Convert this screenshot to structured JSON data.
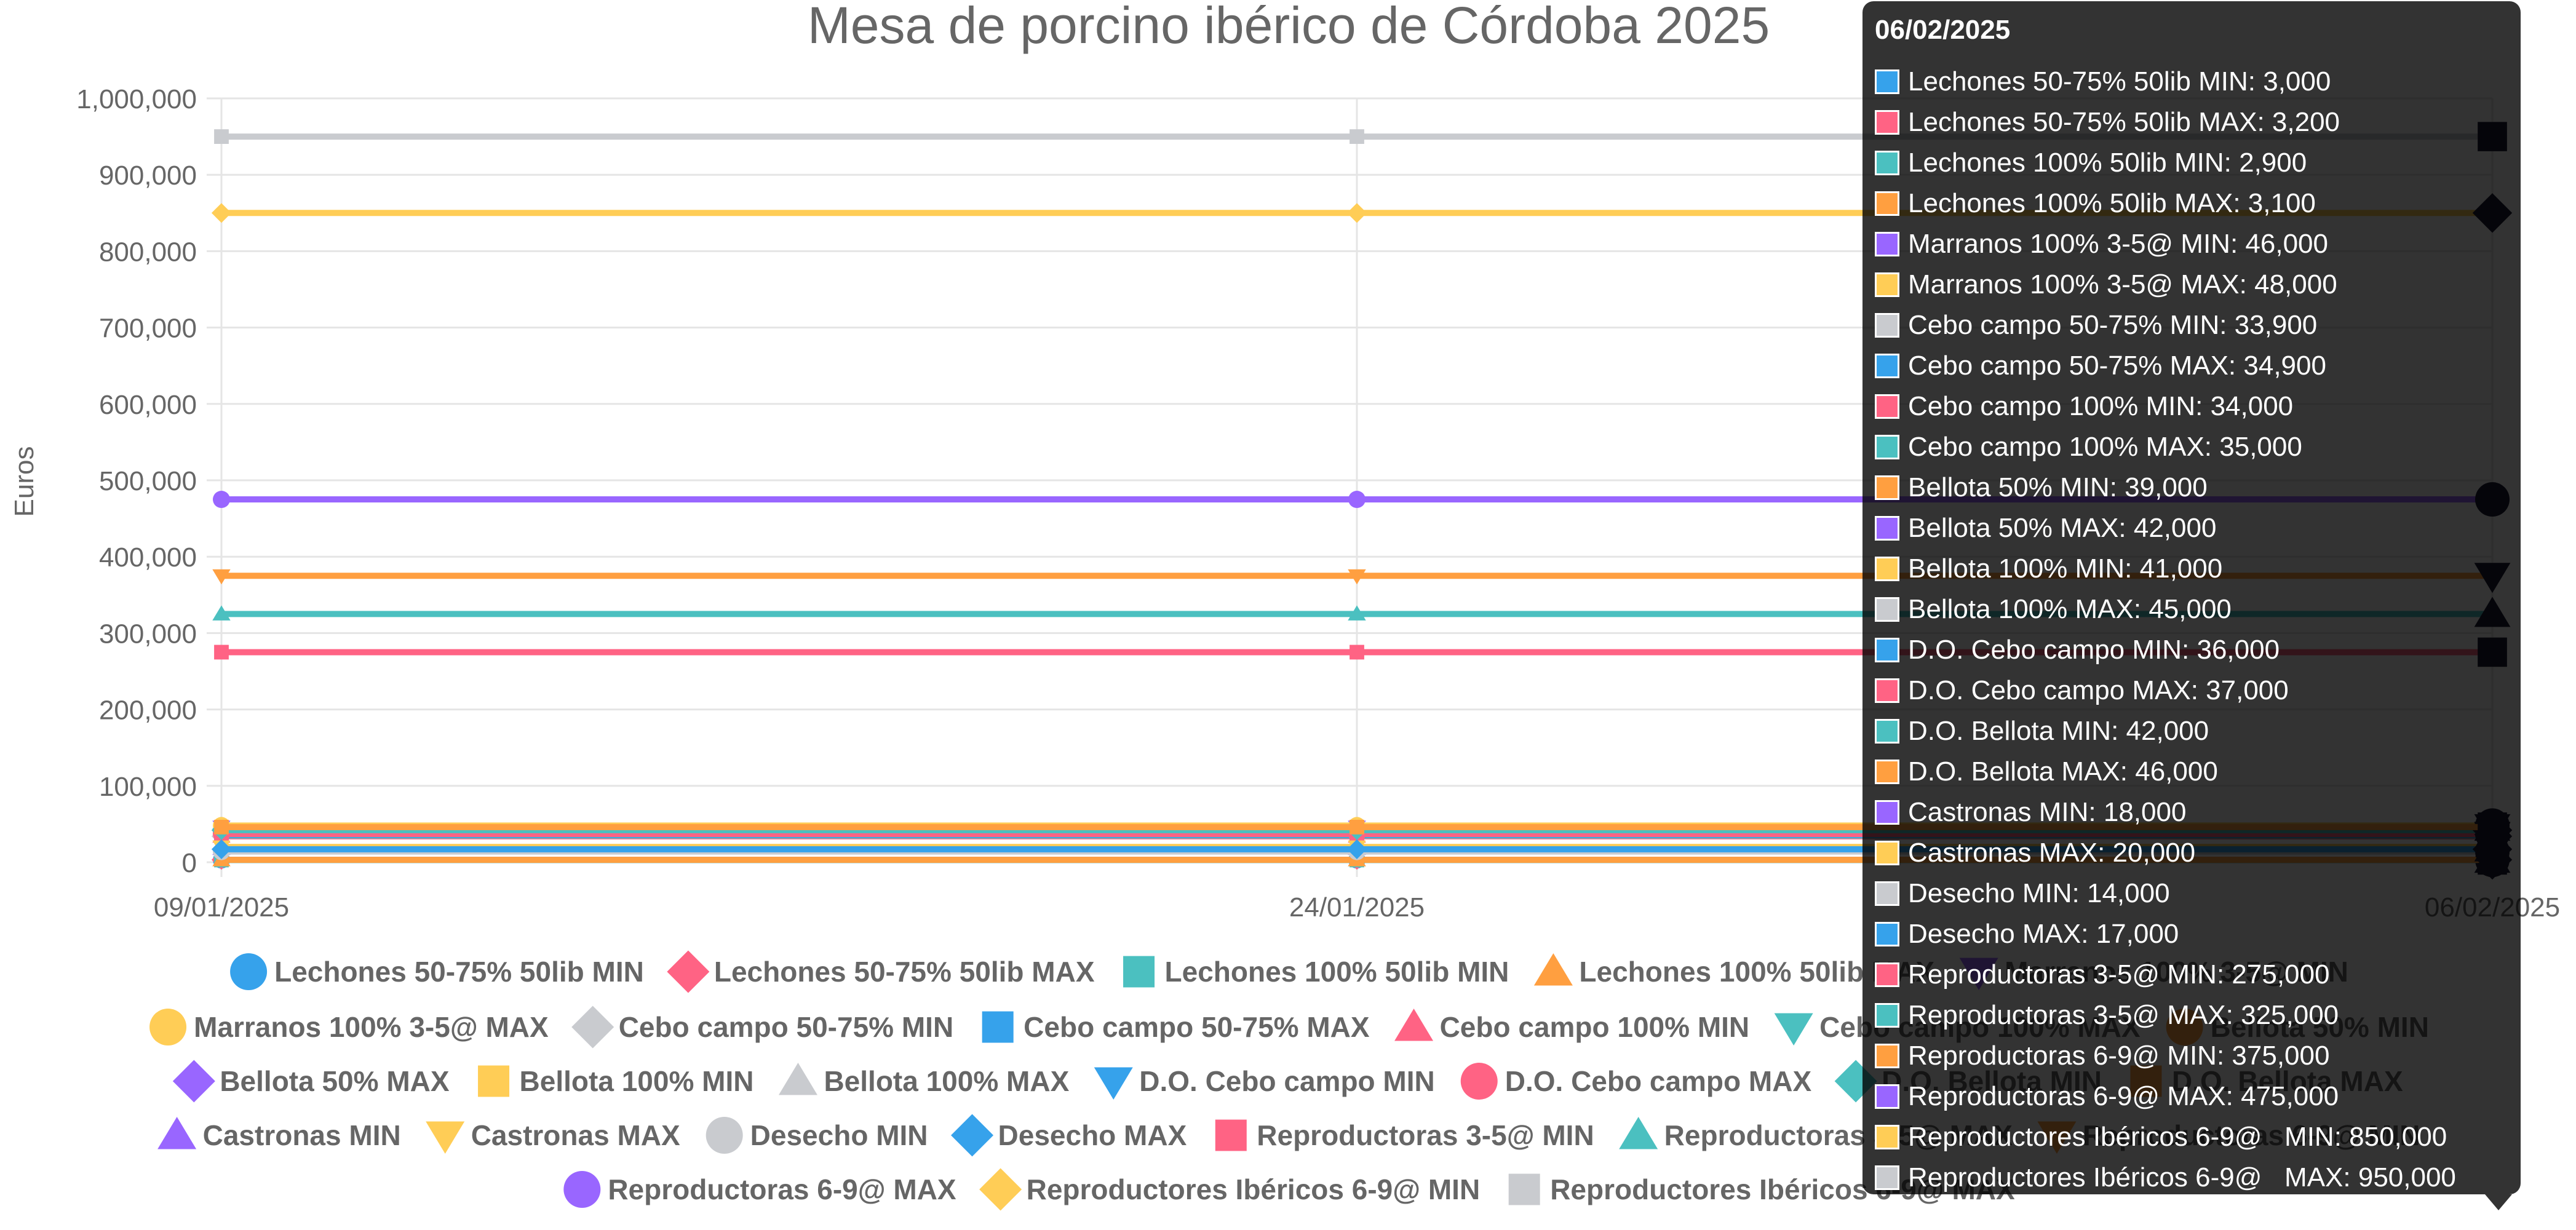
{
  "chart_data": {
    "type": "line",
    "title": "Mesa de porcino ibérico de Córdoba 2025",
    "ylabel": "Euros",
    "xlabel": "",
    "x": [
      "09/01/2025",
      "24/01/2025",
      "06/02/2025"
    ],
    "ylim": [
      0,
      1000000
    ],
    "yticks": [
      "0",
      "100,000",
      "200,000",
      "300,000",
      "400,000",
      "500,000",
      "600,000",
      "700,000",
      "800,000",
      "900,000",
      "1,000,000"
    ],
    "grid": true,
    "legend_position": "bottom",
    "series": [
      {
        "name": "Lechones 50-75% 50lib MIN",
        "values": [
          3000,
          3000,
          3000
        ],
        "color": "#36a2eb",
        "marker": "circle"
      },
      {
        "name": "Lechones 50-75% 50lib MAX",
        "values": [
          3200,
          3200,
          3200
        ],
        "color": "#ff6384",
        "marker": "rectRot"
      },
      {
        "name": "Lechones 100% 50lib MIN",
        "values": [
          2900,
          2900,
          2900
        ],
        "color": "#4bc0c0",
        "marker": "rect"
      },
      {
        "name": "Lechones 100% 50lib MAX",
        "values": [
          3100,
          3100,
          3100
        ],
        "color": "#ff9f40",
        "marker": "triangle"
      },
      {
        "name": "Marranos 100% 3-5@ MIN",
        "values": [
          46000,
          46000,
          46000
        ],
        "color": "#9966ff",
        "marker": "triangleDown"
      },
      {
        "name": "Marranos 100% 3-5@ MAX",
        "values": [
          48000,
          48000,
          48000
        ],
        "color": "#ffcd56",
        "marker": "circle"
      },
      {
        "name": "Cebo campo 50-75% MIN",
        "values": [
          33900,
          33900,
          33900
        ],
        "color": "#c9cbcf",
        "marker": "rectRot"
      },
      {
        "name": "Cebo campo 50-75% MAX",
        "values": [
          34900,
          34900,
          34900
        ],
        "color": "#36a2eb",
        "marker": "rect"
      },
      {
        "name": "Cebo campo 100% MIN",
        "values": [
          34000,
          34000,
          34000
        ],
        "color": "#ff6384",
        "marker": "triangle"
      },
      {
        "name": "Cebo campo 100% MAX",
        "values": [
          35000,
          35000,
          35000
        ],
        "color": "#4bc0c0",
        "marker": "triangleDown"
      },
      {
        "name": "Bellota 50% MIN",
        "values": [
          39000,
          39000,
          39000
        ],
        "color": "#ff9f40",
        "marker": "circle"
      },
      {
        "name": "Bellota 50% MAX",
        "values": [
          42000,
          42000,
          42000
        ],
        "color": "#9966ff",
        "marker": "rectRot"
      },
      {
        "name": "Bellota 100% MIN",
        "values": [
          41000,
          41000,
          41000
        ],
        "color": "#ffcd56",
        "marker": "rect"
      },
      {
        "name": "Bellota 100% MAX",
        "values": [
          45000,
          45000,
          45000
        ],
        "color": "#c9cbcf",
        "marker": "triangle"
      },
      {
        "name": "D.O. Cebo campo MIN",
        "values": [
          36000,
          36000,
          36000
        ],
        "color": "#36a2eb",
        "marker": "triangleDown"
      },
      {
        "name": "D.O. Cebo campo MAX",
        "values": [
          37000,
          37000,
          37000
        ],
        "color": "#ff6384",
        "marker": "circle"
      },
      {
        "name": "D.O. Bellota MIN",
        "values": [
          42000,
          42000,
          42000
        ],
        "color": "#4bc0c0",
        "marker": "rectRot"
      },
      {
        "name": "D.O. Bellota MAX",
        "values": [
          46000,
          46000,
          46000
        ],
        "color": "#ff9f40",
        "marker": "rect"
      },
      {
        "name": "Castronas MIN",
        "values": [
          18000,
          18000,
          18000
        ],
        "color": "#9966ff",
        "marker": "triangle"
      },
      {
        "name": "Castronas MAX",
        "values": [
          20000,
          20000,
          20000
        ],
        "color": "#ffcd56",
        "marker": "triangleDown"
      },
      {
        "name": "Desecho MIN",
        "values": [
          14000,
          14000,
          14000
        ],
        "color": "#c9cbcf",
        "marker": "circle"
      },
      {
        "name": "Desecho MAX",
        "values": [
          17000,
          17000,
          17000
        ],
        "color": "#36a2eb",
        "marker": "rectRot"
      },
      {
        "name": "Reproductoras 3-5@ MIN",
        "values": [
          275000,
          275000,
          275000
        ],
        "color": "#ff6384",
        "marker": "rect"
      },
      {
        "name": "Reproductoras 3-5@ MAX",
        "values": [
          325000,
          325000,
          325000
        ],
        "color": "#4bc0c0",
        "marker": "triangle"
      },
      {
        "name": "Reproductoras 6-9@ MIN",
        "values": [
          375000,
          375000,
          375000
        ],
        "color": "#ff9f40",
        "marker": "triangleDown"
      },
      {
        "name": "Reproductoras 6-9@ MAX",
        "values": [
          475000,
          475000,
          475000
        ],
        "color": "#9966ff",
        "marker": "circle"
      },
      {
        "name": "Reproductores Ibéricos 6-9@   MIN",
        "values": [
          850000,
          850000,
          850000
        ],
        "color": "#ffcd56",
        "marker": "rectRot"
      },
      {
        "name": "Reproductores Ibéricos 6-9@   MAX",
        "values": [
          950000,
          950000,
          950000
        ],
        "color": "#c9cbcf",
        "marker": "rect"
      }
    ]
  },
  "tooltip": {
    "title": "06/02/2025",
    "items": [
      {
        "text": "Lechones 50-75% 50lib MIN: 3,000",
        "color": "#36a2eb"
      },
      {
        "text": "Lechones 50-75% 50lib MAX: 3,200",
        "color": "#ff6384"
      },
      {
        "text": "Lechones 100% 50lib MIN: 2,900",
        "color": "#4bc0c0"
      },
      {
        "text": "Lechones 100% 50lib MAX: 3,100",
        "color": "#ff9f40"
      },
      {
        "text": "Marranos 100% 3-5@ MIN: 46,000",
        "color": "#9966ff"
      },
      {
        "text": "Marranos 100% 3-5@ MAX: 48,000",
        "color": "#ffcd56"
      },
      {
        "text": "Cebo campo 50-75% MIN: 33,900",
        "color": "#c9cbcf"
      },
      {
        "text": "Cebo campo 50-75% MAX: 34,900",
        "color": "#36a2eb"
      },
      {
        "text": "Cebo campo 100% MIN: 34,000",
        "color": "#ff6384"
      },
      {
        "text": "Cebo campo 100% MAX: 35,000",
        "color": "#4bc0c0"
      },
      {
        "text": "Bellota 50% MIN: 39,000",
        "color": "#ff9f40"
      },
      {
        "text": "Bellota 50% MAX: 42,000",
        "color": "#9966ff"
      },
      {
        "text": "Bellota 100% MIN: 41,000",
        "color": "#ffcd56"
      },
      {
        "text": "Bellota 100% MAX: 45,000",
        "color": "#c9cbcf"
      },
      {
        "text": "D.O. Cebo campo MIN: 36,000",
        "color": "#36a2eb"
      },
      {
        "text": "D.O. Cebo campo MAX: 37,000",
        "color": "#ff6384"
      },
      {
        "text": "D.O. Bellota MIN: 42,000",
        "color": "#4bc0c0"
      },
      {
        "text": "D.O. Bellota MAX: 46,000",
        "color": "#ff9f40"
      },
      {
        "text": "Castronas MIN: 18,000",
        "color": "#9966ff"
      },
      {
        "text": "Castronas MAX: 20,000",
        "color": "#ffcd56"
      },
      {
        "text": "Desecho MIN: 14,000",
        "color": "#c9cbcf"
      },
      {
        "text": "Desecho MAX: 17,000",
        "color": "#36a2eb"
      },
      {
        "text": "Reproductoras 3-5@ MIN: 275,000",
        "color": "#ff6384"
      },
      {
        "text": "Reproductoras 3-5@ MAX: 325,000",
        "color": "#4bc0c0"
      },
      {
        "text": "Reproductoras 6-9@ MIN: 375,000",
        "color": "#ff9f40"
      },
      {
        "text": "Reproductoras 6-9@ MAX: 475,000",
        "color": "#9966ff"
      },
      {
        "text": "Reproductores Ibéricos 6-9@   MIN: 850,000",
        "color": "#ffcd56"
      },
      {
        "text": "Reproductores Ibéricos 6-9@   MAX: 950,000",
        "color": "#c9cbcf"
      }
    ]
  }
}
